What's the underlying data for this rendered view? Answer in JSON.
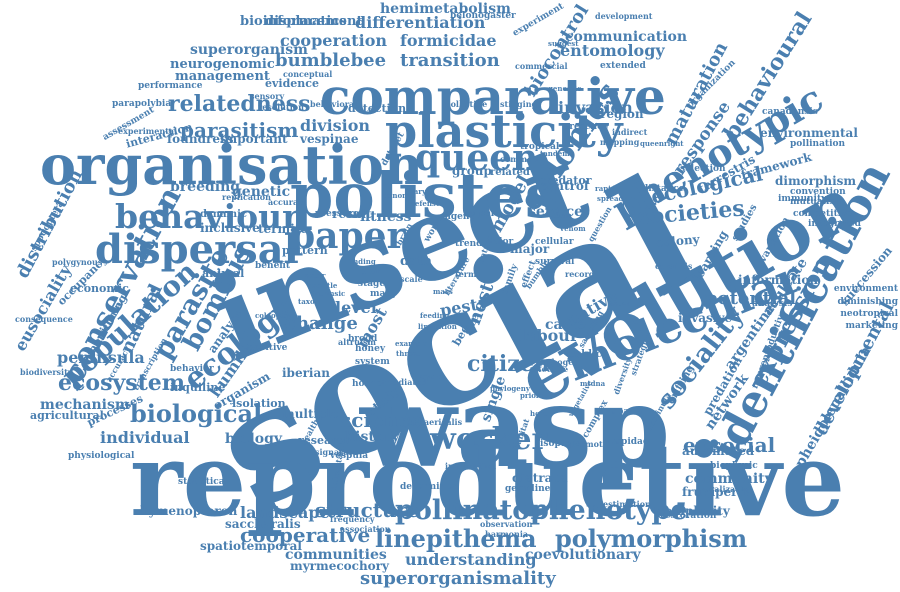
{
  "palette": {
    "primary": "#4a7fb0"
  },
  "words": [
    {
      "text": "social"
    },
    {
      "text": "insect"
    },
    {
      "text": "wasp"
    },
    {
      "text": "reproductive"
    },
    {
      "text": "evolution"
    },
    {
      "text": "polistes"
    },
    {
      "text": "organisation"
    },
    {
      "text": "comparative"
    },
    {
      "text": "plasticity"
    },
    {
      "text": "identification"
    },
    {
      "text": "molecular"
    },
    {
      "text": "phenotypic"
    },
    {
      "text": "dispersal"
    },
    {
      "text": "behaviour"
    },
    {
      "text": "queen"
    },
    {
      "text": "paper"
    },
    {
      "text": "colonies"
    },
    {
      "text": "conservation"
    },
    {
      "text": "ecology"
    },
    {
      "text": "parasite"
    },
    {
      "text": "bombus"
    },
    {
      "text": "population"
    },
    {
      "text": "ecosystem"
    },
    {
      "text": "biological"
    },
    {
      "text": "worker"
    },
    {
      "text": "pollinator"
    },
    {
      "text": "phenotype"
    },
    {
      "text": "polymorphism"
    },
    {
      "text": "linepithema"
    },
    {
      "text": "cooperative"
    },
    {
      "text": "structure"
    },
    {
      "text": "superorganismality"
    },
    {
      "text": "understanding"
    },
    {
      "text": "sociality"
    },
    {
      "text": "expression"
    },
    {
      "text": "eusocial"
    },
    {
      "text": "citizen"
    },
    {
      "text": "science"
    },
    {
      "text": "ecological"
    },
    {
      "text": "societies"
    },
    {
      "text": "relatedness"
    },
    {
      "text": "parasitism"
    },
    {
      "text": "division"
    },
    {
      "text": "bumblebee"
    },
    {
      "text": "transition"
    },
    {
      "text": "cooperation"
    },
    {
      "text": "formicidae"
    },
    {
      "text": "differentiation"
    },
    {
      "text": "entomology"
    },
    {
      "text": "communication"
    },
    {
      "text": "biocontrol"
    },
    {
      "text": "maturation"
    },
    {
      "text": "behavioural"
    },
    {
      "text": "response"
    },
    {
      "text": "invasion"
    },
    {
      "text": "distribution"
    },
    {
      "text": "eusociality"
    },
    {
      "text": "natural"
    },
    {
      "text": "humile"
    },
    {
      "text": "analyse"
    },
    {
      "text": "peninsula"
    },
    {
      "text": "mechanism"
    },
    {
      "text": "individual"
    },
    {
      "text": "biology"
    },
    {
      "text": "history"
    },
    {
      "text": "labour"
    },
    {
      "text": "caste"
    },
    {
      "text": "native"
    },
    {
      "text": "network"
    },
    {
      "text": "argentine"
    },
    {
      "text": "aculeate"
    },
    {
      "text": "potential"
    },
    {
      "text": "developmental"
    },
    {
      "text": "community"
    },
    {
      "text": "landscape"
    },
    {
      "text": "hymenopteron"
    },
    {
      "text": "communities"
    },
    {
      "text": "coevolutionary"
    },
    {
      "text": "complexity"
    },
    {
      "text": "pheidolepallidula"
    },
    {
      "text": "hemimetabolism"
    },
    {
      "text": "bioinformatics"
    },
    {
      "text": "displacement"
    },
    {
      "text": "superorganism"
    },
    {
      "text": "neurogenomic"
    },
    {
      "text": "management"
    },
    {
      "text": "change"
    },
    {
      "text": "level"
    },
    {
      "text": "model"
    },
    {
      "text": "service"
    },
    {
      "text": "major"
    },
    {
      "text": "control"
    },
    {
      "text": "breeding"
    },
    {
      "text": "genetic"
    },
    {
      "text": "termite"
    },
    {
      "text": "inclusive"
    },
    {
      "text": "fitness"
    },
    {
      "text": "result"
    },
    {
      "text": "pattern"
    },
    {
      "text": "data"
    },
    {
      "text": "pest"
    },
    {
      "text": "nest"
    },
    {
      "text": "most"
    },
    {
      "text": "organism"
    },
    {
      "text": "multiple"
    },
    {
      "text": "iberian"
    },
    {
      "text": "region"
    },
    {
      "text": "environmental"
    },
    {
      "text": "dimorphism"
    },
    {
      "text": "framework"
    },
    {
      "text": "terrestris"
    },
    {
      "text": "colony"
    },
    {
      "text": "learning"
    },
    {
      "text": "invasive"
    },
    {
      "text": "information"
    },
    {
      "text": "succession"
    },
    {
      "text": "automated"
    },
    {
      "text": "predation"
    },
    {
      "text": "nonreproductive"
    },
    {
      "text": "frugiperda"
    },
    {
      "text": "saccharalis"
    },
    {
      "text": "spatiotemporal"
    },
    {
      "text": "myrmecochory"
    },
    {
      "text": "belonogaster"
    },
    {
      "text": "experiment"
    },
    {
      "text": "extended"
    },
    {
      "text": "organization"
    },
    {
      "text": "canadensis"
    },
    {
      "text": "pollination"
    },
    {
      "text": "convention"
    },
    {
      "text": "mutualism"
    },
    {
      "text": "competitive"
    },
    {
      "text": "environment"
    },
    {
      "text": "diminishing"
    },
    {
      "text": "neotropical"
    },
    {
      "text": "marketing"
    },
    {
      "text": "spodoptera"
    },
    {
      "text": "parapolybia"
    },
    {
      "text": "assessment"
    },
    {
      "text": "interaction"
    },
    {
      "text": "foundress"
    },
    {
      "text": "important"
    },
    {
      "text": "vespinae"
    },
    {
      "text": "detection"
    },
    {
      "text": "evidence"
    },
    {
      "text": "economic"
    },
    {
      "text": "occupancy"
    },
    {
      "text": "machine"
    },
    {
      "text": "monitoring"
    },
    {
      "text": "agricultural"
    },
    {
      "text": "processes"
    },
    {
      "text": "inquiline"
    },
    {
      "text": "isolation"
    },
    {
      "text": "physiological"
    },
    {
      "text": "statistical"
    },
    {
      "text": "research"
    },
    {
      "text": "vespula"
    },
    {
      "text": "study"
    },
    {
      "text": "single"
    },
    {
      "text": "honey"
    },
    {
      "text": "hornet"
    },
    {
      "text": "system"
    },
    {
      "text": "brood"
    },
    {
      "text": "animal"
    },
    {
      "text": "benefit"
    },
    {
      "text": "positive"
    },
    {
      "text": "behavior"
    },
    {
      "text": "biodiversity"
    },
    {
      "text": "consequence"
    },
    {
      "text": "polygynous"
    },
    {
      "text": "performance"
    },
    {
      "text": "presence"
    },
    {
      "text": "predator"
    },
    {
      "text": "tropical"
    },
    {
      "text": "group"
    },
    {
      "text": "related"
    },
    {
      "text": "dataset"
    },
    {
      "text": "pressure"
    },
    {
      "text": "dynamic"
    },
    {
      "text": "vespidae"
    },
    {
      "text": "diatraea"
    },
    {
      "text": "germline"
    },
    {
      "text": "determined"
    },
    {
      "text": "isoptera"
    },
    {
      "text": "restoration"
    },
    {
      "text": "biophysic"
    },
    {
      "text": "spatial"
    },
    {
      "text": "drifting"
    },
    {
      "text": "distance"
    },
    {
      "text": "analysis"
    },
    {
      "text": "immunity"
    },
    {
      "text": "integrated"
    },
    {
      "text": "selection"
    },
    {
      "text": "studies"
    },
    {
      "text": "variation"
    },
    {
      "text": "sensory"
    },
    {
      "text": "conceptual"
    },
    {
      "text": "behavioral"
    },
    {
      "text": "pollistine"
    },
    {
      "text": "stinging"
    },
    {
      "text": "commercial"
    },
    {
      "text": "development"
    },
    {
      "text": "resolution"
    },
    {
      "text": "experimental"
    },
    {
      "text": "replication"
    },
    {
      "text": "accurate"
    },
    {
      "text": "altruism"
    },
    {
      "text": "mapping"
    },
    {
      "text": "indirect"
    },
    {
      "text": "common"
    },
    {
      "text": "helper"
    },
    {
      "text": "cellular"
    },
    {
      "text": "survival"
    },
    {
      "text": "record"
    },
    {
      "text": "question"
    },
    {
      "text": "valor"
    },
    {
      "text": "trend"
    },
    {
      "text": "agent"
    },
    {
      "text": "plant"
    },
    {
      "text": "stage"
    },
    {
      "text": "many"
    },
    {
      "text": "bee"
    },
    {
      "text": "size"
    },
    {
      "text": "term"
    },
    {
      "text": "world"
    },
    {
      "text": "brain"
    },
    {
      "text": "scale"
    },
    {
      "text": "cycle"
    },
    {
      "text": "habitat"
    },
    {
      "text": "public"
    },
    {
      "text": "effect"
    },
    {
      "text": "family"
    },
    {
      "text": "nature"
    },
    {
      "text": "pathogen"
    },
    {
      "text": "complex"
    },
    {
      "text": "strategies"
    },
    {
      "text": "diversity"
    },
    {
      "text": "estimation"
    },
    {
      "text": "implication"
    },
    {
      "text": "ruralization"
    },
    {
      "text": "sphaericalis"
    },
    {
      "text": "bumble"
    },
    {
      "text": "dominula"
    },
    {
      "text": "effective"
    },
    {
      "text": "health"
    },
    {
      "text": "signature"
    },
    {
      "text": "inheritance"
    },
    {
      "text": "frequency"
    },
    {
      "text": "observation"
    },
    {
      "text": "association"
    },
    {
      "text": "harmonia"
    },
    {
      "text": "accuracy"
    },
    {
      "text": "transcription"
    },
    {
      "text": "mediated"
    },
    {
      "text": "promot"
    },
    {
      "text": "satan"
    },
    {
      "text": "literature"
    },
    {
      "text": "ceratitis"
    },
    {
      "text": "sampling"
    },
    {
      "text": "mtdna"
    },
    {
      "text": "vegetative"
    },
    {
      "text": "mantle"
    },
    {
      "text": "intrinsic"
    },
    {
      "text": "taxon"
    },
    {
      "text": "factor"
    },
    {
      "text": "finding"
    },
    {
      "text": "coleopter"
    },
    {
      "text": "feeding"
    },
    {
      "text": "limitation"
    },
    {
      "text": "suggest"
    },
    {
      "text": "genomic"
    },
    {
      "text": "example"
    },
    {
      "text": "threat"
    },
    {
      "text": "rapid"
    },
    {
      "text": "spread"
    },
    {
      "text": "queenright"
    },
    {
      "text": "phylogeny"
    },
    {
      "text": "tandem"
    },
    {
      "text": "ovary"
    },
    {
      "text": "genome"
    },
    {
      "text": "defense"
    },
    {
      "text": "toxin"
    },
    {
      "text": "venom"
    },
    {
      "text": "mass"
    },
    {
      "text": "prior"
    },
    {
      "text": "host"
    },
    {
      "text": "growth"
    }
  ]
}
